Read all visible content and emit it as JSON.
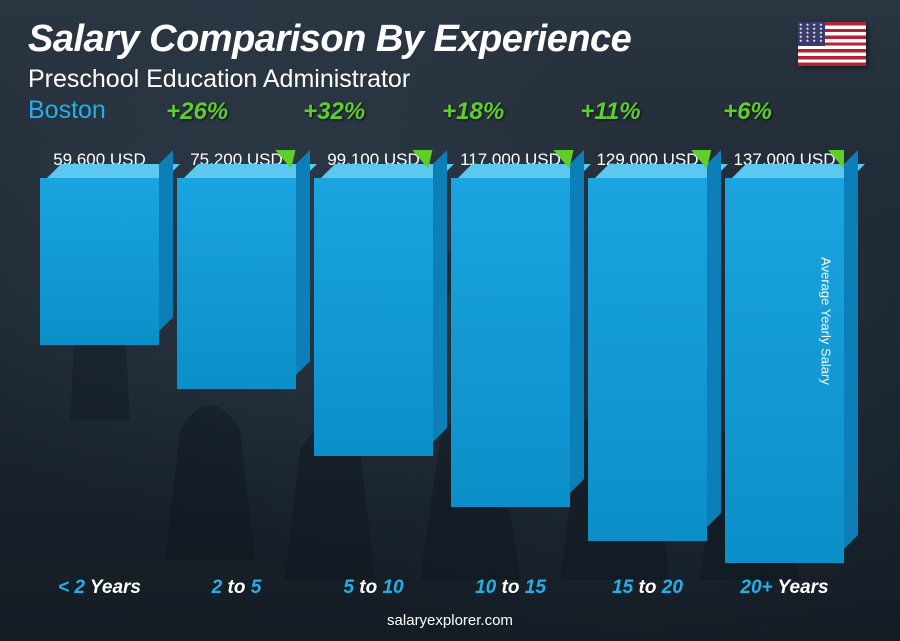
{
  "header": {
    "title": "Salary Comparison By Experience",
    "subtitle": "Preschool Education Administrator",
    "location": "Boston"
  },
  "flag": {
    "country": "United States",
    "stripe_red": "#b22234",
    "stripe_white": "#ffffff",
    "canton_blue": "#3c3b6e"
  },
  "yaxis_label": "Average Yearly Salary",
  "footer": "salaryexplorer.com",
  "chart": {
    "type": "bar",
    "value_max": 137000,
    "bar_front_color": "#1aa4e0",
    "bar_top_color": "#5cc7ef",
    "bar_side_color": "#0d7fb8",
    "bar_gradient_bottom": "#0b8fc9",
    "value_fontsize": 17,
    "value_color": "#ffffff",
    "xaxis_number_color": "#23b0e8",
    "xaxis_unit_color": "#ffffff",
    "xaxis_fontsize": 19,
    "arc_color": "#5fce2a",
    "arc_width": 5,
    "pct_color": "#5fce2a",
    "pct_fontsize": 24,
    "background_color": "#1a2530",
    "bars": [
      {
        "category_html": "&lt; 2 <span class='unit'>Years</span>",
        "value": 59600,
        "value_label": "59,600 USD"
      },
      {
        "category_html": "2 <span class='unit'>to</span> 5",
        "value": 75200,
        "value_label": "75,200 USD",
        "pct_from_prev": "+26%"
      },
      {
        "category_html": "5 <span class='unit'>to</span> 10",
        "value": 99100,
        "value_label": "99,100 USD",
        "pct_from_prev": "+32%"
      },
      {
        "category_html": "10 <span class='unit'>to</span> 15",
        "value": 117000,
        "value_label": "117,000 USD",
        "pct_from_prev": "+18%"
      },
      {
        "category_html": "15 <span class='unit'>to</span> 20",
        "value": 129000,
        "value_label": "129,000 USD",
        "pct_from_prev": "+11%"
      },
      {
        "category_html": "20+ <span class='unit'>Years</span>",
        "value": 137000,
        "value_label": "137,000 USD",
        "pct_from_prev": "+6%"
      }
    ]
  }
}
